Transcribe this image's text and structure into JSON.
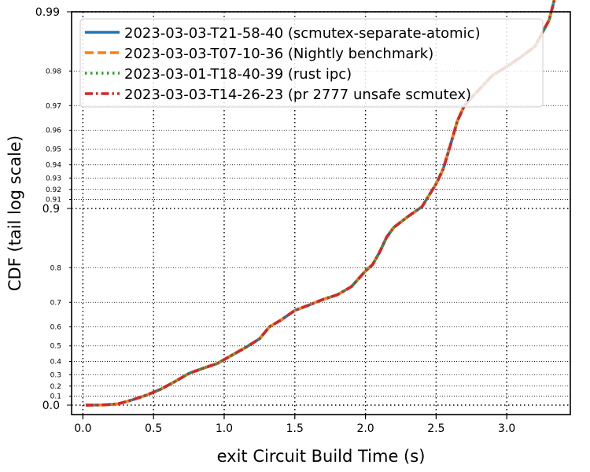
{
  "chart_data": {
    "type": "line",
    "title": "",
    "xlabel": "exit Circuit Build Time (s)",
    "ylabel": "CDF (tail log scale)",
    "xlim": [
      -0.08,
      3.45
    ],
    "x_ticks": [
      "0.0",
      "0.5",
      "1.0",
      "1.5",
      "2.0",
      "2.5",
      "3.0"
    ],
    "y_scale": "tail-log",
    "y_ticks_major": [
      "0.0",
      "0.9",
      "0.99"
    ],
    "y_ticks_minor": [
      "0.1",
      "0.2",
      "0.3",
      "0.4",
      "0.5",
      "0.6",
      "0.7",
      "0.8",
      "0.91",
      "0.92",
      "0.93",
      "0.94",
      "0.95",
      "0.96",
      "0.97",
      "0.98"
    ],
    "grid": true,
    "legend_position": "top-left",
    "series": [
      {
        "name": "2023-03-03-T21-58-40 (scmutex-separate-atomic)",
        "color": "#1f77b4",
        "style": "solid",
        "x": [
          0.02,
          0.15,
          0.25,
          0.35,
          0.45,
          0.55,
          0.65,
          0.75,
          0.85,
          0.95,
          1.05,
          1.15,
          1.25,
          1.32,
          1.4,
          1.5,
          1.6,
          1.7,
          1.8,
          1.9,
          1.95,
          2.0,
          2.05,
          2.1,
          2.15,
          2.2,
          2.3,
          2.4,
          2.5,
          2.55,
          2.6,
          2.65,
          2.7,
          2.8,
          2.9,
          3.0,
          3.1,
          3.2,
          3.3,
          3.35
        ],
        "y": [
          0.0,
          0.003,
          0.015,
          0.06,
          0.11,
          0.17,
          0.24,
          0.31,
          0.35,
          0.385,
          0.44,
          0.49,
          0.54,
          0.6,
          0.63,
          0.67,
          0.69,
          0.71,
          0.725,
          0.75,
          0.772,
          0.792,
          0.807,
          0.833,
          0.86,
          0.875,
          0.89,
          0.902,
          0.925,
          0.937,
          0.952,
          0.964,
          0.97,
          0.975,
          0.979,
          0.981,
          0.983,
          0.985,
          0.989,
          0.992
        ]
      },
      {
        "name": "2023-03-03-T07-10-36 (Nightly benchmark)",
        "color": "#ff7f0e",
        "style": "dashed",
        "x": [
          0.02,
          0.15,
          0.25,
          0.35,
          0.45,
          0.55,
          0.65,
          0.75,
          0.85,
          0.95,
          1.05,
          1.15,
          1.25,
          1.32,
          1.4,
          1.5,
          1.6,
          1.7,
          1.8,
          1.9,
          1.95,
          2.0,
          2.05,
          2.1,
          2.15,
          2.2,
          2.3,
          2.4,
          2.5,
          2.55,
          2.6,
          2.65,
          2.7,
          2.8,
          2.9,
          3.0,
          3.1,
          3.2,
          3.3,
          3.35
        ],
        "y": [
          0.0,
          0.003,
          0.015,
          0.06,
          0.11,
          0.17,
          0.24,
          0.31,
          0.35,
          0.385,
          0.44,
          0.49,
          0.54,
          0.6,
          0.63,
          0.67,
          0.69,
          0.71,
          0.725,
          0.75,
          0.772,
          0.792,
          0.807,
          0.833,
          0.86,
          0.875,
          0.89,
          0.902,
          0.925,
          0.937,
          0.952,
          0.964,
          0.97,
          0.975,
          0.979,
          0.981,
          0.983,
          0.985,
          0.989,
          0.992
        ]
      },
      {
        "name": "2023-03-01-T18-40-39 (rust ipc)",
        "color": "#2ca02c",
        "style": "dotted",
        "x": [
          0.02,
          0.15,
          0.25,
          0.35,
          0.45,
          0.55,
          0.65,
          0.75,
          0.85,
          0.95,
          1.05,
          1.15,
          1.25,
          1.32,
          1.4,
          1.5,
          1.6,
          1.7,
          1.8,
          1.9,
          1.95,
          2.0,
          2.05,
          2.1,
          2.15,
          2.2,
          2.3,
          2.4,
          2.5,
          2.55,
          2.6,
          2.65,
          2.7,
          2.8,
          2.9,
          3.0,
          3.1,
          3.2,
          3.3,
          3.35
        ],
        "y": [
          0.0,
          0.003,
          0.015,
          0.06,
          0.11,
          0.17,
          0.24,
          0.31,
          0.35,
          0.385,
          0.44,
          0.49,
          0.54,
          0.6,
          0.63,
          0.67,
          0.69,
          0.71,
          0.725,
          0.75,
          0.772,
          0.792,
          0.807,
          0.833,
          0.86,
          0.875,
          0.89,
          0.902,
          0.925,
          0.937,
          0.952,
          0.964,
          0.97,
          0.975,
          0.979,
          0.981,
          0.983,
          0.985,
          0.989,
          0.992
        ]
      },
      {
        "name": "2023-03-03-T14-26-23 (pr 2777 unsafe scmutex)",
        "color": "#d62728",
        "style": "dashdot",
        "x": [
          0.02,
          0.15,
          0.25,
          0.35,
          0.45,
          0.55,
          0.65,
          0.75,
          0.85,
          0.95,
          1.05,
          1.15,
          1.25,
          1.32,
          1.4,
          1.5,
          1.6,
          1.7,
          1.8,
          1.9,
          1.95,
          2.0,
          2.05,
          2.1,
          2.15,
          2.2,
          2.3,
          2.4,
          2.5,
          2.55,
          2.6,
          2.65,
          2.7,
          2.8,
          2.9,
          3.0,
          3.1,
          3.2,
          3.3,
          3.35
        ],
        "y": [
          0.0,
          0.003,
          0.015,
          0.06,
          0.11,
          0.17,
          0.24,
          0.31,
          0.35,
          0.385,
          0.44,
          0.49,
          0.54,
          0.6,
          0.63,
          0.67,
          0.69,
          0.71,
          0.725,
          0.75,
          0.772,
          0.792,
          0.807,
          0.833,
          0.86,
          0.875,
          0.89,
          0.902,
          0.925,
          0.937,
          0.952,
          0.964,
          0.97,
          0.975,
          0.979,
          0.981,
          0.983,
          0.985,
          0.989,
          0.992
        ]
      }
    ]
  }
}
